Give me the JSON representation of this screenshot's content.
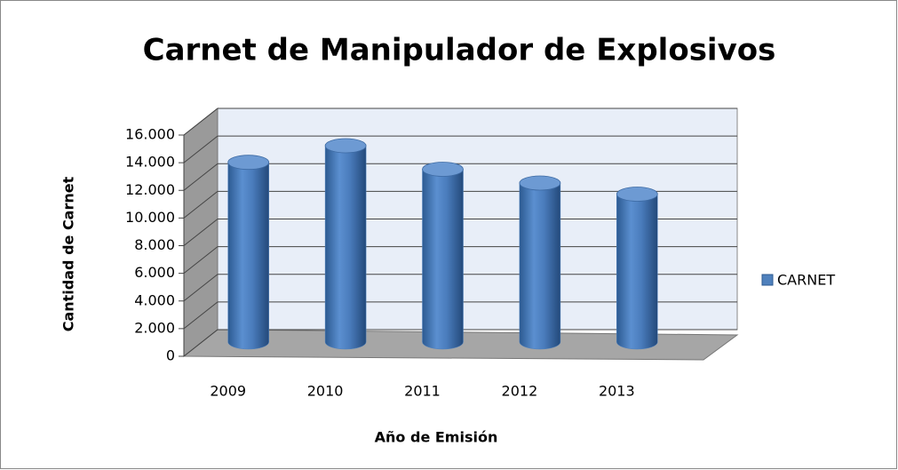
{
  "chart_data": {
    "type": "bar3d",
    "title": "Carnet de Manipulador de Explosivos",
    "x_label": "Año de Emisión",
    "y_label": "Cantidad de Carnet",
    "categories": [
      "2009",
      "2010",
      "2011",
      "2012",
      "2013"
    ],
    "series": [
      {
        "name": "CARNET",
        "color": "#4f81bd",
        "values": [
          13000,
          14200,
          12500,
          11500,
          10700
        ]
      }
    ],
    "ylim": [
      0,
      16000
    ],
    "yticks": [
      0,
      {
        "value": 2000,
        "label": "2.000"
      },
      {
        "value": 4000,
        "label": "4.000"
      },
      {
        "value": 6000,
        "label": "6.000"
      },
      {
        "value": 8000,
        "label": "8.000"
      },
      {
        "value": 10000,
        "label": "10.000"
      },
      {
        "value": 12000,
        "label": "12.000"
      },
      {
        "value": 14000,
        "label": "14.000"
      },
      {
        "value": 16000,
        "label": "16.000"
      }
    ],
    "grid": true,
    "legend": "right"
  }
}
